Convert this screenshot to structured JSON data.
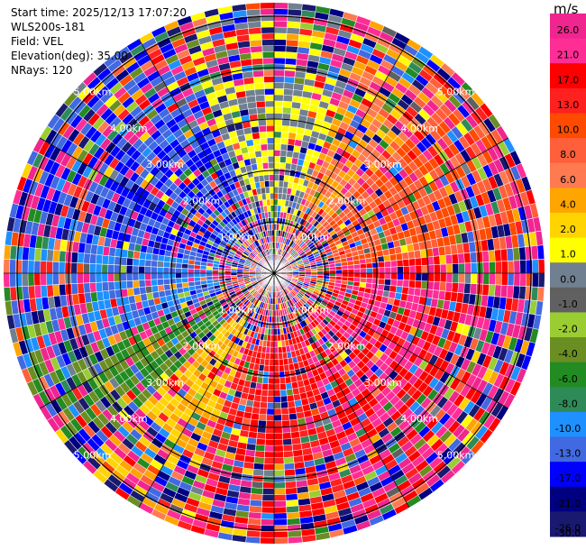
{
  "header": {
    "start_time": "Start time: 2025/12/13 17:07:20",
    "instrument": "WLS200s-181",
    "field": "Field: VEL",
    "elevation": "Elevation(deg): 35.00",
    "nrays": "NRays: 120"
  },
  "chart_data": {
    "type": "heatmap",
    "projection": "polar-ppi",
    "title": "",
    "field": "VEL",
    "elevation_deg": 35.0,
    "n_rays": 120,
    "max_range_km": 5.0,
    "range_rings_km": [
      1.0,
      2.0,
      3.0,
      4.0,
      5.0
    ],
    "ring_labels": [
      "1.00km",
      "2.00km",
      "3.00km",
      "4.00km",
      "5.00km"
    ],
    "spoke_angles_deg": [
      0,
      30,
      60,
      90,
      120,
      150,
      180,
      210,
      240,
      270,
      300,
      330
    ],
    "colorbar": {
      "unit": "m/s",
      "tick_labels": [
        "26.0",
        "21.0",
        "17.0",
        "13.0",
        "10.0",
        "8.0",
        "6.0",
        "4.0",
        "2.0",
        "1.0",
        "0.0",
        "-1.0",
        "-2.0",
        "-4.0",
        "-6.0",
        "-8.0",
        "-10.0",
        "-13.0",
        "-17.0",
        "-21.0",
        "-26.0",
        "-30.0"
      ],
      "colors": [
        "#f0258f",
        "#ff2d95",
        "#ff0000",
        "#ff2020",
        "#ff4a00",
        "#ff5f3a",
        "#ff7a50",
        "#ffa500",
        "#ffd400",
        "#ffff00",
        "#708090",
        "#606060",
        "#9acd32",
        "#6b8e23",
        "#228b22",
        "#2e8b57",
        "#1e90ff",
        "#4169e1",
        "#0000ff",
        "#000080",
        "#191970"
      ],
      "vmin": -30.0,
      "vmax": 30.0
    },
    "dominant_sectors": [
      {
        "azimuth_range_deg": [
          280,
          340
        ],
        "velocity_ms": -17.0
      },
      {
        "azimuth_range_deg": [
          20,
          45
        ],
        "velocity_ms": 4.0
      },
      {
        "azimuth_range_deg": [
          45,
          85
        ],
        "velocity_ms": 8.0
      },
      {
        "azimuth_range_deg": [
          85,
          160
        ],
        "velocity_ms": 17.0
      },
      {
        "azimuth_range_deg": [
          160,
          200
        ],
        "velocity_ms": 13.0
      },
      {
        "azimuth_range_deg": [
          200,
          225
        ],
        "velocity_ms": 2.0
      },
      {
        "azimuth_range_deg": [
          225,
          250
        ],
        "velocity_ms": -6.0
      },
      {
        "azimuth_range_deg": [
          250,
          280
        ],
        "velocity_ms": -13.0
      }
    ]
  }
}
